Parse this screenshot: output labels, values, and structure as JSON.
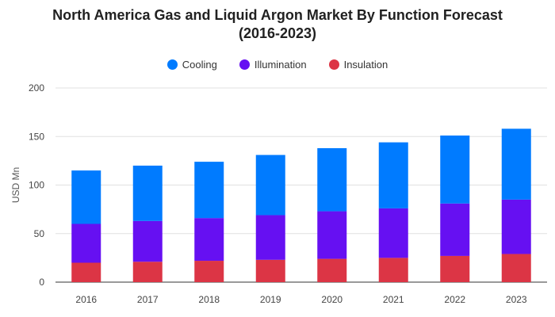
{
  "chart_data": {
    "type": "bar",
    "stacked": true,
    "title": "North America Gas and Liquid Argon Market By Function Forecast (2016-2023)",
    "xlabel": "",
    "ylabel": "USD Mn",
    "ylim": [
      0,
      200
    ],
    "yticks": [
      "0",
      "50",
      "100",
      "150",
      "200"
    ],
    "grid": true,
    "legend_position": "top-center",
    "categories": [
      "2016",
      "2017",
      "2018",
      "2019",
      "2020",
      "2021",
      "2022",
      "2023"
    ],
    "series": [
      {
        "name": "Insulation",
        "color": "#dc3545",
        "values": [
          20,
          21,
          22,
          23,
          24,
          25,
          27,
          29
        ]
      },
      {
        "name": "Illumination",
        "color": "#6610f2",
        "values": [
          40,
          42,
          44,
          46,
          49,
          51,
          54,
          56
        ]
      },
      {
        "name": "Cooling",
        "color": "#007bff",
        "values": [
          55,
          57,
          58,
          62,
          65,
          68,
          70,
          73
        ]
      }
    ],
    "legend_order": [
      "Cooling",
      "Illumination",
      "Insulation"
    ]
  }
}
